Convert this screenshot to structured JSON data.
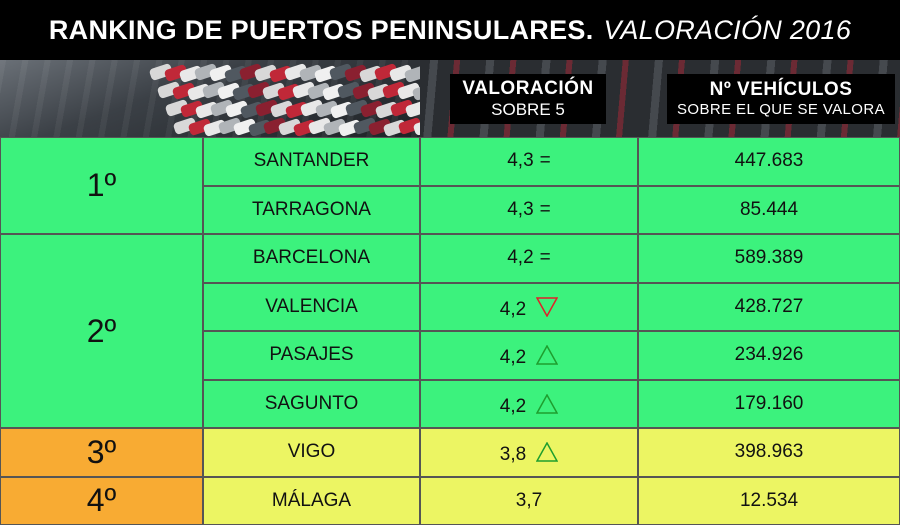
{
  "title": {
    "main": "RANKING DE PUERTOS PENINSULARES.",
    "sub": "VALORACIÓN 2016"
  },
  "headers": {
    "valoracion": {
      "line1": "VALORACIÓN",
      "line2": "SOBRE 5"
    },
    "vehiculos": {
      "line1": "Nº VEHÍCULOS",
      "line2": "SOBRE EL QUE SE VALORA"
    }
  },
  "colors": {
    "green": "#3cf27d",
    "yellow": "#ecf563",
    "orange": "#f8ab33",
    "trend_up": "#1e9e2e",
    "trend_down": "#e0202a"
  },
  "chart_data": {
    "type": "table",
    "title": "RANKING DE PUERTOS PENINSULARES. VALORACIÓN 2016",
    "columns": [
      "",
      "",
      "VALORACIÓN SOBRE 5",
      "Nº VEHÍCULOS SOBRE EL QUE SE VALORA"
    ],
    "ranks": [
      {
        "label": "1º",
        "rows": 2,
        "color": "green"
      },
      {
        "label": "2º",
        "rows": 4,
        "color": "green"
      },
      {
        "label": "3º",
        "rows": 1,
        "color": "orange"
      },
      {
        "label": "4º",
        "rows": 1,
        "color": "orange"
      }
    ],
    "rows": [
      {
        "port": "SANTANDER",
        "valoracion": "4,3",
        "trend": "=",
        "vehiculos": "447.683",
        "color": "green"
      },
      {
        "port": "TARRAGONA",
        "valoracion": "4,3",
        "trend": "=",
        "vehiculos": "85.444",
        "color": "green"
      },
      {
        "port": "BARCELONA",
        "valoracion": "4,2",
        "trend": "=",
        "vehiculos": "589.389",
        "color": "green"
      },
      {
        "port": "VALENCIA",
        "valoracion": "4,2",
        "trend": "down",
        "vehiculos": "428.727",
        "color": "green"
      },
      {
        "port": "PASAJES",
        "valoracion": "4,2",
        "trend": "up",
        "vehiculos": "234.926",
        "color": "green"
      },
      {
        "port": "SAGUNTO",
        "valoracion": "4,2",
        "trend": "up",
        "vehiculos": "179.160",
        "color": "green"
      },
      {
        "port": "VIGO",
        "valoracion": "3,8",
        "trend": "up",
        "vehiculos": "398.963",
        "color": "yellow"
      },
      {
        "port": "MÁLAGA",
        "valoracion": "3,7",
        "trend": "",
        "vehiculos": "12.534",
        "color": "yellow"
      }
    ]
  }
}
